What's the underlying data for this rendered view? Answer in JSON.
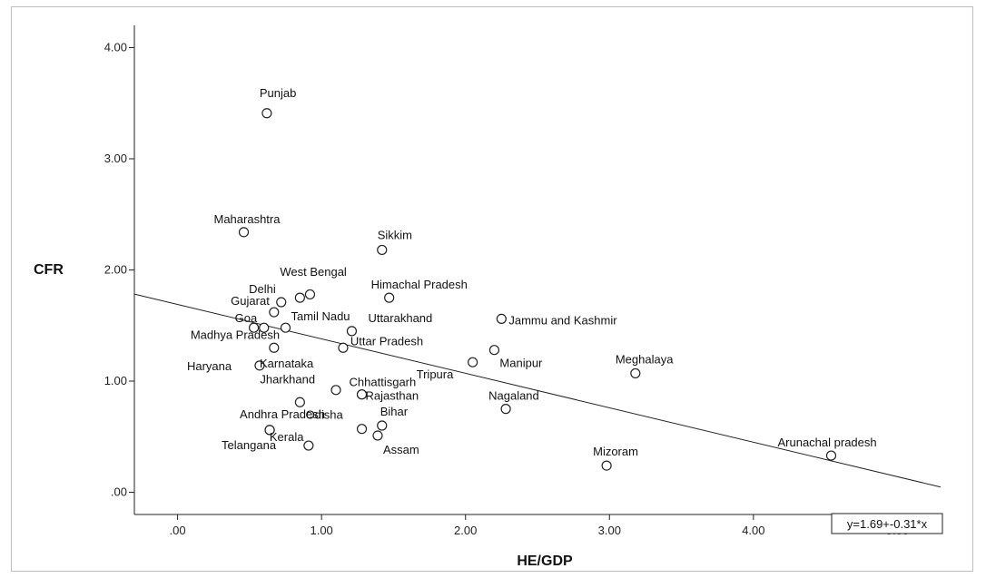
{
  "chart_data": {
    "type": "scatter",
    "xlabel": "HE/GDP",
    "ylabel": "CFR",
    "xlim": [
      -0.3,
      5.3
    ],
    "ylim": [
      -0.2,
      4.2
    ],
    "x_ticks": [
      0,
      1,
      2,
      3,
      4,
      5
    ],
    "x_tick_labels": [
      ".00",
      "1.00",
      "2.00",
      "3.00",
      "4.00",
      "5.00"
    ],
    "y_ticks": [
      0,
      1,
      2,
      3,
      4
    ],
    "y_tick_labels": [
      ".00",
      "1.00",
      "2.00",
      "3.00",
      "4.00"
    ],
    "grid": false,
    "fit_line": {
      "intercept": 1.69,
      "slope": -0.31,
      "label": "y=1.69+-0.31*x"
    },
    "points": [
      {
        "label": "Punjab",
        "x": 0.62,
        "y": 3.41
      },
      {
        "label": "Maharashtra",
        "x": 0.46,
        "y": 2.34
      },
      {
        "label": "Sikkim",
        "x": 1.42,
        "y": 2.18
      },
      {
        "label": "Delhi",
        "x": 0.72,
        "y": 1.71
      },
      {
        "label": "West Bengal",
        "x": 0.85,
        "y": 1.75
      },
      {
        "label": "",
        "x": 0.92,
        "y": 1.78
      },
      {
        "label": "Himachal Pradesh",
        "x": 1.47,
        "y": 1.75
      },
      {
        "label": "Gujarat",
        "x": 0.67,
        "y": 1.62
      },
      {
        "label": "Goa",
        "x": 0.53,
        "y": 1.48
      },
      {
        "label": "",
        "x": 0.6,
        "y": 1.48
      },
      {
        "label": "Tamil Nadu",
        "x": 0.75,
        "y": 1.48
      },
      {
        "label": "Uttarakhand",
        "x": 1.21,
        "y": 1.45
      },
      {
        "label": "Jammu and Kashmir",
        "x": 2.25,
        "y": 1.56
      },
      {
        "label": "Madhya Pradesh",
        "x": 0.67,
        "y": 1.3
      },
      {
        "label": "Uttar Pradesh",
        "x": 1.15,
        "y": 1.3
      },
      {
        "label": "Manipur",
        "x": 2.2,
        "y": 1.28
      },
      {
        "label": "Tripura",
        "x": 2.05,
        "y": 1.17
      },
      {
        "label": "Meghalaya",
        "x": 3.18,
        "y": 1.07
      },
      {
        "label": "Haryana",
        "x": 0.57,
        "y": 1.14
      },
      {
        "label": "Karnataka",
        "x": 1.1,
        "y": 0.92
      },
      {
        "label": "Chhattisgarh",
        "x": 1.28,
        "y": 0.88
      },
      {
        "label": "Jharkhand",
        "x": 0.85,
        "y": 0.81
      },
      {
        "label": "Rajasthan",
        "x": 1.28,
        "y": 0.88
      },
      {
        "label": "Nagaland",
        "x": 2.28,
        "y": 0.75
      },
      {
        "label": "Andhra Pradesh",
        "x": 0.64,
        "y": 0.56
      },
      {
        "label": "Odisha",
        "x": 1.28,
        "y": 0.57
      },
      {
        "label": "Bihar",
        "x": 1.42,
        "y": 0.6
      },
      {
        "label": "Kerala",
        "x": 0.91,
        "y": 0.42
      },
      {
        "label": "Telangana",
        "x": 0.64,
        "y": 0.56
      },
      {
        "label": "Assam",
        "x": 1.39,
        "y": 0.51
      },
      {
        "label": "Mizoram",
        "x": 2.98,
        "y": 0.24
      },
      {
        "label": "Arunachal pradesh",
        "x": 4.54,
        "y": 0.33
      }
    ]
  }
}
